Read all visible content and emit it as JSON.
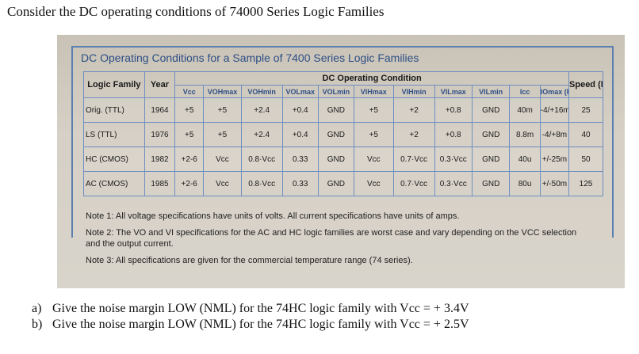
{
  "header": {
    "text": "Consider the DC operating conditions of 74000 Series Logic Families"
  },
  "photo": {
    "title": "DC Operating Conditions for a Sample of 7400 Series Logic Families",
    "table": {
      "col_logic_family": "Logic Family",
      "col_year": "Year",
      "group_header": "DC Operating Condition",
      "col_speed": "Speed (MHz)",
      "sub_headers": [
        "Vcc",
        "VOHmax",
        "VOHmin",
        "VOLmax",
        "VOLmin",
        "VIHmax",
        "VIHmin",
        "VILmax",
        "VILmin",
        "Icc",
        "IOmax (H/L)"
      ],
      "rows": [
        {
          "family": "Orig. (TTL)",
          "year": "1964",
          "values": [
            "+5",
            "+5",
            "+2.4",
            "+0.4",
            "GND",
            "+5",
            "+2",
            "+0.8",
            "GND",
            "40m",
            "-4/+16m"
          ],
          "speed": "25"
        },
        {
          "family": "LS (TTL)",
          "year": "1976",
          "values": [
            "+5",
            "+5",
            "+2.4",
            "+0.4",
            "GND",
            "+5",
            "+2",
            "+0.8",
            "GND",
            "8.8m",
            "-4/+8m"
          ],
          "speed": "40"
        },
        {
          "family": "HC (CMOS)",
          "year": "1982",
          "values": [
            "+2-6",
            "Vcc",
            "0.8·Vcc",
            "0.33",
            "GND",
            "Vcc",
            "0.7·Vcc",
            "0.3·Vcc",
            "GND",
            "40u",
            "+/-25m"
          ],
          "speed": "50"
        },
        {
          "family": "AC (CMOS)",
          "year": "1985",
          "values": [
            "+2-6",
            "Vcc",
            "0.8·Vcc",
            "0.33",
            "GND",
            "Vcc",
            "0.7·Vcc",
            "0.3·Vcc",
            "GND",
            "80u",
            "+/-50m"
          ],
          "speed": "125"
        }
      ]
    },
    "notes": [
      "Note 1: All voltage specifications have units of volts.  All current specifications have units of amps.",
      "Note 2: The VO and VI specifications for the AC and HC logic families are worst case and vary depending on the VCC selection and the output current.",
      "Note 3: All specifications are given for the commercial temperature range (74 series)."
    ]
  },
  "questions": [
    {
      "label": "a)",
      "text": "Give the noise margin LOW (NML) for the 74HC logic family with Vcc = + 3.4V"
    },
    {
      "label": "b)",
      "text": "Give the noise margin LOW (NML) for the 74HC logic family with Vcc = + 2.5V"
    }
  ]
}
